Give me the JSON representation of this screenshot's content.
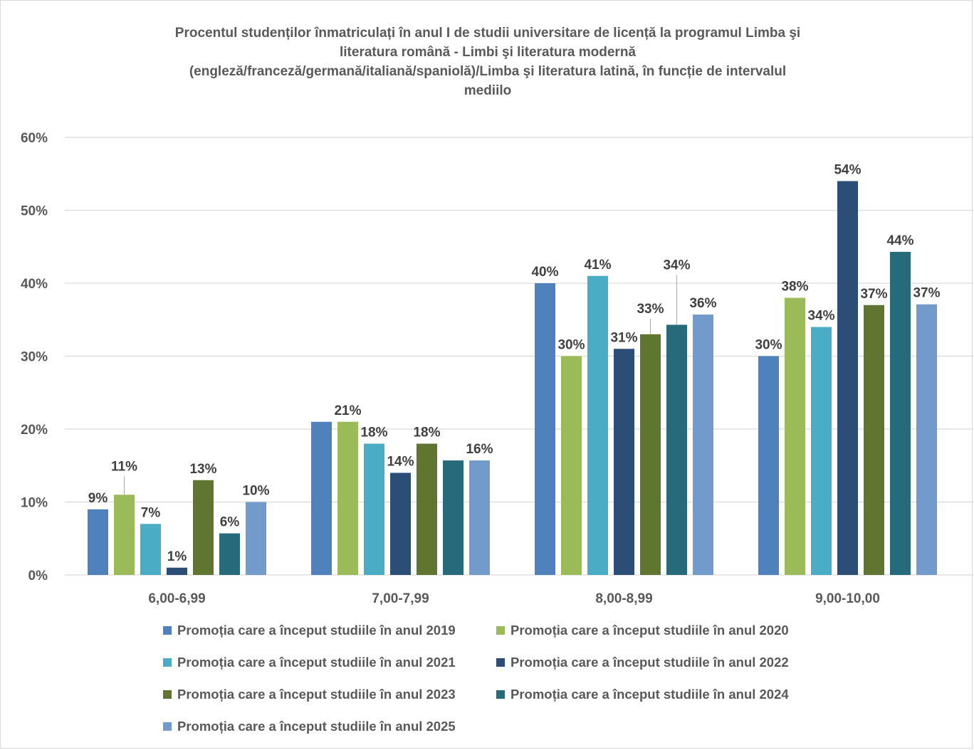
{
  "chart_data": {
    "type": "bar",
    "title": "Procentul studenților înmatriculați în anul I de studii universitare de licență la programul Limba şi literatura română - Limbi şi literatura modernă (engleză/franceză/germană/italiană/spaniolă)/Limba şi literatura latină, în funcție de intervalul mediilo",
    "title_lines": [
      "Procentul studenților înmatriculați în anul I de studii universitare de licență la programul Limba şi",
      "literatura română - Limbi şi literatura modernă",
      "(engleză/franceză/germană/italiană/spaniolă)/Limba şi literatura latină, în funcție de intervalul",
      "mediilo"
    ],
    "categories": [
      "6,00-6,99",
      "7,00-7,99",
      "8,00-8,99",
      "9,00-10,00"
    ],
    "ylim": [
      0,
      0.6
    ],
    "yticks": [
      0,
      0.1,
      0.2,
      0.3,
      0.4,
      0.5,
      0.6
    ],
    "ytick_labels": [
      "0%",
      "10%",
      "20%",
      "30%",
      "40%",
      "50%",
      "60%"
    ],
    "grid": true,
    "legend_position": "bottom",
    "series": [
      {
        "name": "Promoția care a început studiile în anul 2019",
        "color": "#4F81BD",
        "values": [
          0.09,
          0.21,
          0.4,
          0.3
        ],
        "labels": [
          "9%",
          "",
          "40%",
          "30%"
        ]
      },
      {
        "name": "Promoția care a început studiile în anul 2020",
        "color": "#9BBB59",
        "values": [
          0.11,
          0.21,
          0.3,
          0.38
        ],
        "labels": [
          "11%",
          "21%",
          "30%",
          "38%"
        ]
      },
      {
        "name": "Promoția care a început studiile în anul 2021",
        "color": "#4BACC6",
        "values": [
          0.07,
          0.18,
          0.41,
          0.34
        ],
        "labels": [
          "7%",
          "18%",
          "41%",
          "34%"
        ]
      },
      {
        "name": "Promoția care a început studiile în anul 2022",
        "color": "#2C4D75",
        "values": [
          0.01,
          0.14,
          0.31,
          0.54
        ],
        "labels": [
          "1%",
          "14%",
          "31%",
          "54%"
        ]
      },
      {
        "name": "Promoția care a început studiile în anul 2023",
        "color": "#5F7530",
        "values": [
          0.13,
          0.18,
          0.33,
          0.37
        ],
        "labels": [
          "13%",
          "18%",
          "33%",
          "37%"
        ]
      },
      {
        "name": "Promoția care a început studiile în anul 2024",
        "color": "#276A7C",
        "values": [
          0.057,
          0.157,
          0.343,
          0.443
        ],
        "labels": [
          "6%",
          "",
          "34%",
          "44%"
        ]
      },
      {
        "name": "Promoția care a început studiile în anul 2025",
        "color": "#729ACA",
        "values": [
          0.1,
          0.157,
          0.357,
          0.371
        ],
        "labels": [
          "10%",
          "16%",
          "36%",
          "37%"
        ]
      }
    ]
  }
}
